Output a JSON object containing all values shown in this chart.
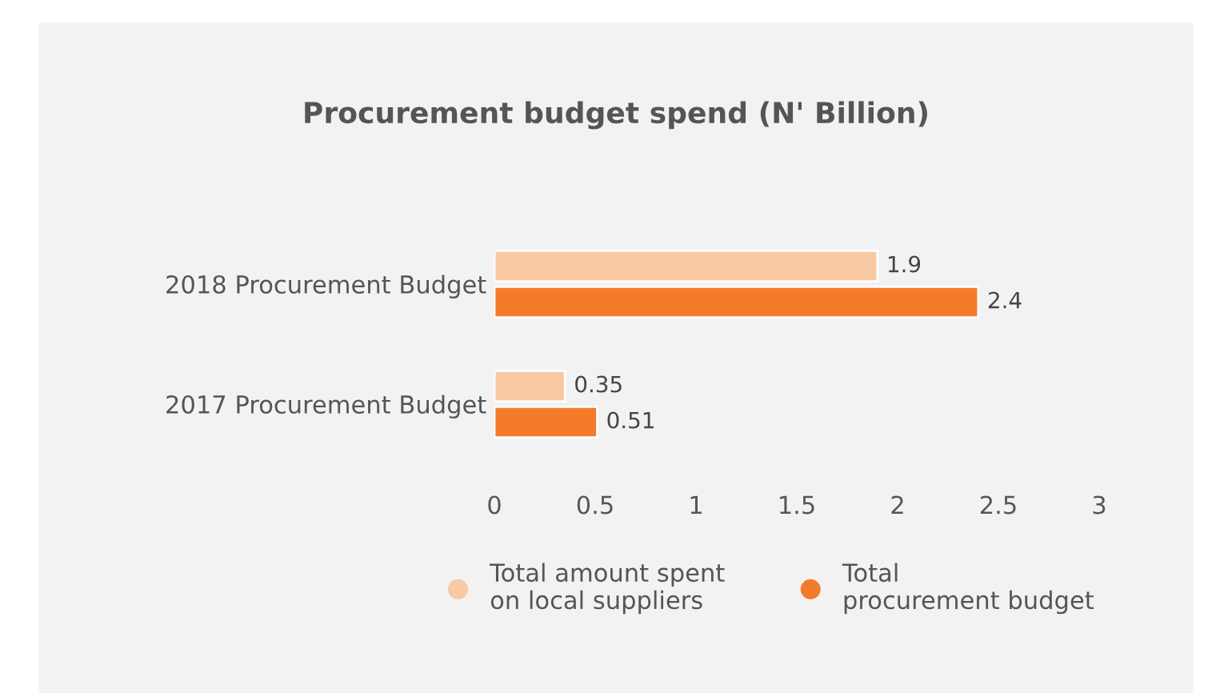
{
  "chart_data": {
    "type": "bar",
    "orientation": "horizontal",
    "title": "Procurement budget spend (N' Billion)",
    "categories": [
      "2018 Procurement Budget",
      "2017 Procurement Budget"
    ],
    "series": [
      {
        "name": "Total amount spent\non local suppliers",
        "color": "#f9c9a3",
        "values": [
          1.9,
          0.35
        ]
      },
      {
        "name": "Total\nprocurement budget",
        "color": "#f47b2a",
        "values": [
          2.4,
          0.51
        ]
      }
    ],
    "xlim": [
      0,
      3
    ],
    "xticks": [
      0,
      0.5,
      1,
      1.5,
      2,
      2.5,
      3
    ],
    "data_labels": true,
    "grid": false,
    "legend": "bottom"
  }
}
